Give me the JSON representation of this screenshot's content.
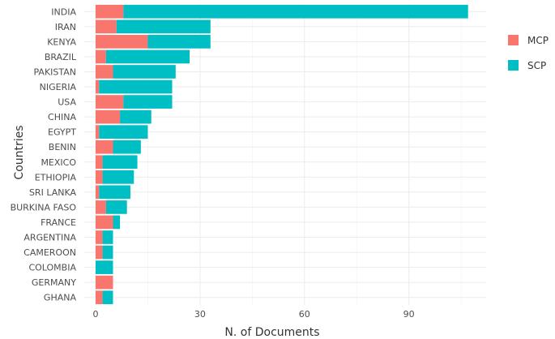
{
  "chart_data": {
    "type": "bar",
    "orientation": "horizontal",
    "stacked": true,
    "xlabel": "N. of Documents",
    "ylabel": "Countries",
    "xlim": [
      0,
      113
    ],
    "xticks": [
      0,
      30,
      60,
      90
    ],
    "grid": true,
    "legend_position": "right",
    "categories": [
      "INDIA",
      "IRAN",
      "KENYA",
      "BRAZIL",
      "PAKISTAN",
      "NIGERIA",
      "USA",
      "CHINA",
      "EGYPT",
      "BENIN",
      "MEXICO",
      "ETHIOPIA",
      "SRI LANKA",
      "BURKINA FASO",
      "FRANCE",
      "ARGENTINA",
      "CAMEROON",
      "COLOMBIA",
      "GERMANY",
      "GHANA"
    ],
    "series": [
      {
        "name": "MCP",
        "color": "#F8766D",
        "values": [
          8,
          6,
          15,
          3,
          5,
          1,
          8,
          7,
          1,
          5,
          2,
          2,
          1,
          3,
          5,
          2,
          2,
          0,
          5,
          2
        ]
      },
      {
        "name": "SCP",
        "color": "#00BFC4",
        "values": [
          99,
          27,
          18,
          24,
          18,
          21,
          14,
          9,
          14,
          8,
          10,
          9,
          9,
          6,
          2,
          3,
          3,
          5,
          0,
          3
        ]
      }
    ]
  }
}
